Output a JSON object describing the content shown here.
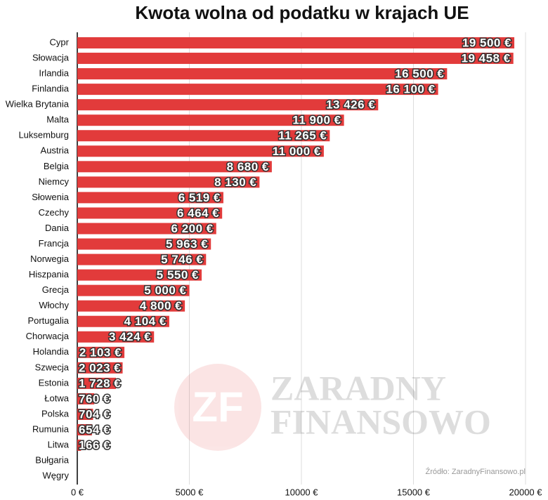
{
  "chart_data": {
    "type": "bar",
    "orientation": "horizontal",
    "title": "Kwota wolna od podatku w krajach UE",
    "categories": [
      "Cypr",
      "Słowacja",
      "Irlandia",
      "Finlandia",
      "Wielka Brytania",
      "Malta",
      "Luksemburg",
      "Austria",
      "Belgia",
      "Niemcy",
      "Słowenia",
      "Czechy",
      "Dania",
      "Francja",
      "Norwegia",
      "Hiszpania",
      "Grecja",
      "Włochy",
      "Portugalia",
      "Chorwacja",
      "Holandia",
      "Szwecja",
      "Estonia",
      "Łotwa",
      "Polska",
      "Rumunia",
      "Litwa",
      "Bułgaria",
      "Węgry"
    ],
    "values": [
      19500,
      19458,
      16500,
      16100,
      13426,
      11900,
      11265,
      11000,
      8680,
      8130,
      6519,
      6464,
      6200,
      5963,
      5746,
      5550,
      5000,
      4800,
      4104,
      3424,
      2103,
      2023,
      1728,
      760,
      704,
      654,
      166,
      0,
      0
    ],
    "value_labels": [
      "19 500 €",
      "19 458 €",
      "16 500 €",
      "16 100 €",
      "13 426 €",
      "11 900 €",
      "11 265 €",
      "11 000 €",
      "8 680 €",
      "8 130 €",
      "6 519 €",
      "6 464 €",
      "6 200 €",
      "5 963 €",
      "5 746 €",
      "5 550 €",
      "5 000 €",
      "4 800 €",
      "4 104 €",
      "3 424 €",
      "2 103 €",
      "2 023 €",
      "1 728 €",
      "760 €",
      "704 €",
      "654 €",
      "166 €",
      null,
      null
    ],
    "color": "#e23b3b",
    "xlim": [
      0,
      20000
    ],
    "xticks": [
      {
        "value": 0,
        "label": "0 €"
      },
      {
        "value": 5000,
        "label": "5000 €"
      },
      {
        "value": 10000,
        "label": "10000 €"
      },
      {
        "value": 15000,
        "label": "15000 €"
      },
      {
        "value": 20000,
        "label": "20000 €"
      }
    ],
    "grid": true,
    "watermark": {
      "logo": "ZF",
      "line1": "ZARADNY",
      "line2": "FINANSOWO"
    },
    "source": "Źródło: ZaradnyFinansowo.pl"
  }
}
